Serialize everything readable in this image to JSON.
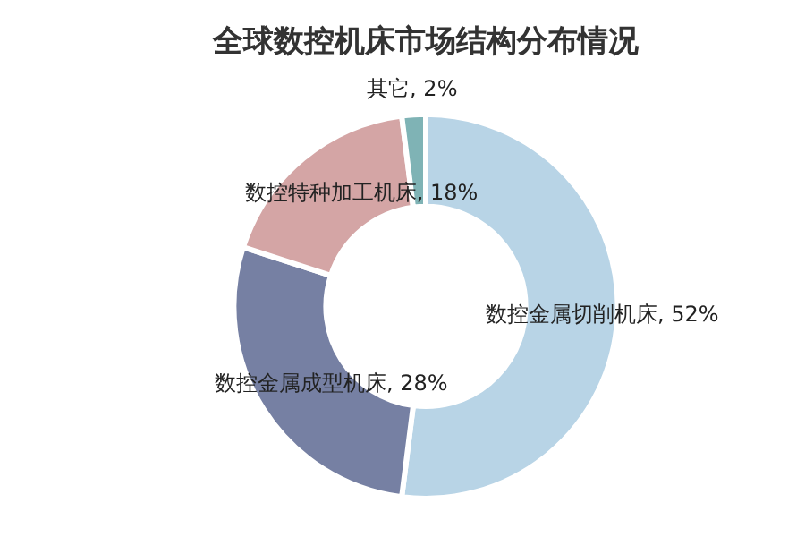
{
  "chart_data": {
    "type": "donut",
    "title": "全球数控机床市场结构分布情况",
    "categories": [
      "数控金属切削机床",
      "数控金属成型机床",
      "数控特种加工机床",
      "其它"
    ],
    "values": [
      52,
      28,
      18,
      2
    ],
    "colors": [
      "#b8d4e6",
      "#7680a3",
      "#d4a5a5",
      "#7fb3b5"
    ],
    "value_labels": [
      "52%",
      "28%",
      "18%",
      "2%"
    ],
    "legend": false
  }
}
